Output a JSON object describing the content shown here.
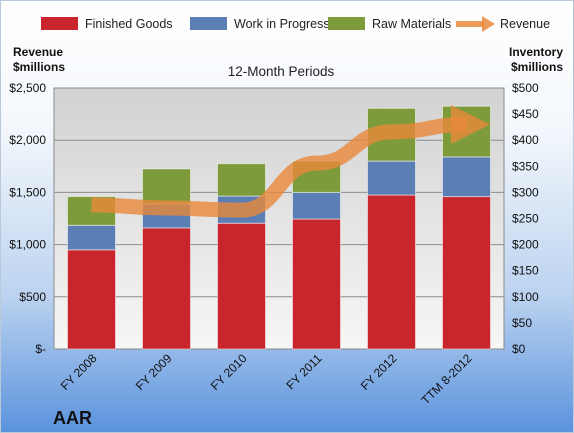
{
  "chart_data": {
    "type": "bar",
    "stacked": true,
    "title": "",
    "subtitle": "12-Month Periods",
    "brand_label": "AAR",
    "ylabel_left": [
      "Revenue",
      "$millions"
    ],
    "ylabel_right": [
      "Inventory",
      "$millions"
    ],
    "categories": [
      "FY 2008",
      "FY 2009",
      "FY 2010",
      "FY 2011",
      "FY 2012",
      "TTM 8-2012"
    ],
    "left_axis": {
      "min": 0,
      "max": 2500,
      "step": 500,
      "tick_labels": [
        "$-",
        "$500",
        "$1,000",
        "$1,500",
        "$2,000",
        "$2,500"
      ]
    },
    "right_axis": {
      "min": 0,
      "max": 500,
      "step": 50,
      "tick_labels": [
        "$0",
        "$50",
        "$100",
        "$150",
        "$200",
        "$250",
        "$300",
        "$350",
        "$400",
        "$450",
        "$500"
      ]
    },
    "series": [
      {
        "name": "Finished Goods",
        "axis": "right",
        "kind": "bar",
        "color": "#c8262c",
        "values": [
          190,
          232,
          241,
          249,
          295,
          292
        ]
      },
      {
        "name": "Work in Progress",
        "axis": "right",
        "kind": "bar",
        "color": "#5b7fb5",
        "values": [
          47,
          46,
          52,
          51,
          65,
          76
        ]
      },
      {
        "name": "Raw Materials",
        "axis": "right",
        "kind": "bar",
        "color": "#7e9b3c",
        "values": [
          55,
          67,
          62,
          60,
          101,
          97
        ]
      },
      {
        "name": "Revenue",
        "axis": "left",
        "kind": "line",
        "color": "#e8883a",
        "values": [
          1380,
          1350,
          1330,
          1780,
          2080,
          2150
        ]
      }
    ],
    "grid": true,
    "legend_position": "top"
  }
}
